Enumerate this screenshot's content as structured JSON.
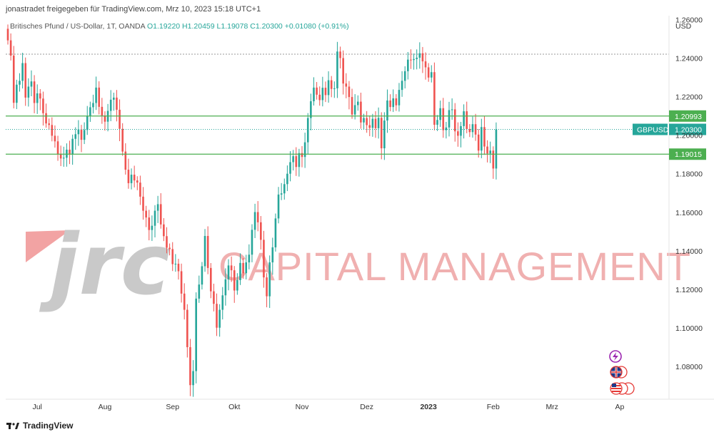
{
  "header": {
    "attribution": "jonastradet freigegeben für TradingView.com, Mrz 10, 2023 15:18 UTC+1"
  },
  "symbol": {
    "name": "Britisches Pfund / US-Dollar, 1T, OANDA",
    "open": "O1.19220",
    "high": "H1.20459",
    "low": "L1.19078",
    "close": "C1.20300",
    "change": "+0.01080 (+0.91%)"
  },
  "footer": {
    "brand": "TradingView"
  },
  "watermark": {
    "logo": "jrc",
    "text": "CAPITAL MANAGEMENT"
  },
  "colors": {
    "up": "#26a69a",
    "down": "#ef5350",
    "level": "#4caf50",
    "price_tag": "#26a69a"
  },
  "icons": [
    "lightning-icon",
    "uk-flag-icon",
    "us-flag-icon"
  ],
  "chart_data": {
    "type": "candlestick",
    "currency": "USD",
    "ylim": [
      1.063,
      1.262
    ],
    "y_ticks": [
      "1.26000",
      "1.24000",
      "1.22000",
      "1.20000",
      "1.18000",
      "1.16000",
      "1.14000",
      "1.12000",
      "1.10000",
      "1.08000"
    ],
    "x_ticks": [
      {
        "label": "Jul",
        "i": 10
      },
      {
        "label": "Aug",
        "i": 33
      },
      {
        "label": "Sep",
        "i": 56
      },
      {
        "label": "Okt",
        "i": 77
      },
      {
        "label": "Nov",
        "i": 100
      },
      {
        "label": "Dez",
        "i": 122
      },
      {
        "label": "2023",
        "i": 143,
        "bold": true
      },
      {
        "label": "Feb",
        "i": 165
      },
      {
        "label": "Mrz",
        "i": 185
      },
      {
        "label": "Ap",
        "i": 208
      }
    ],
    "levels": [
      {
        "value": 1.20993,
        "label": "1.20993"
      },
      {
        "value": 1.19015,
        "label": "1.19015"
      }
    ],
    "last_price": {
      "symbol": "GBPUSD",
      "value": 1.203,
      "label": "1.20300"
    },
    "closes": [
      1.2492,
      1.2413,
      1.2168,
      1.2262,
      1.2282,
      1.2374,
      1.2195,
      1.2252,
      1.2279,
      1.2167,
      1.2217,
      1.219,
      1.2114,
      1.2061,
      1.2053,
      1.1997,
      1.1968,
      1.1903,
      1.1879,
      1.1883,
      1.1925,
      1.19,
      1.1981,
      1.2005,
      1.2028,
      1.1976,
      1.2027,
      1.2098,
      1.2145,
      1.2167,
      1.2247,
      1.2147,
      1.2102,
      1.207,
      1.2126,
      1.2184,
      1.2195,
      1.2132,
      1.2033,
      1.1915,
      1.1821,
      1.1751,
      1.1795,
      1.1765,
      1.1754,
      1.1681,
      1.1608,
      1.1573,
      1.1508,
      1.153,
      1.1608,
      1.1642,
      1.1537,
      1.1476,
      1.1416,
      1.1409,
      1.1331,
      1.1333,
      1.1294,
      1.1178,
      1.1094,
      1.09,
      1.0703,
      1.0776,
      1.1152,
      1.1225,
      1.132,
      1.1477,
      1.1311,
      1.119,
      1.1125,
      1.1001,
      1.1094,
      1.1169,
      1.1252,
      1.1324,
      1.1299,
      1.1194,
      1.1248,
      1.1337,
      1.1284,
      1.134,
      1.138,
      1.1509,
      1.1601,
      1.1548,
      1.1457,
      1.1262,
      1.1164,
      1.134,
      1.1418,
      1.1568,
      1.1692,
      1.1698,
      1.1746,
      1.18,
      1.186,
      1.1891,
      1.1835,
      1.1907,
      1.1887,
      1.1963,
      1.2089,
      1.2176,
      1.2247,
      1.221,
      1.2182,
      1.2246,
      1.2208,
      1.2285,
      1.224,
      1.2243,
      1.2434,
      1.24,
      1.2268,
      1.2252,
      1.2198,
      1.2107,
      1.2156,
      1.2174,
      1.2066,
      1.2089,
      1.2052,
      1.2038,
      1.2085,
      1.2036,
      1.209,
      1.1932,
      1.2076,
      1.218,
      1.2146,
      1.2191,
      1.2155,
      1.2235,
      1.2282,
      1.2332,
      1.2392,
      1.239,
      1.2395,
      1.2402,
      1.2425,
      1.2383,
      1.2352,
      1.2299,
      1.2327,
      1.2054,
      1.2079,
      1.214,
      1.2026,
      1.204,
      1.213,
      1.2134,
      1.202,
      1.1997,
      1.2047,
      1.2124,
      1.2032,
      1.2016,
      1.2057,
      1.2003,
      1.192,
      1.2042,
      1.1941,
      1.1905,
      1.192,
      1.1827,
      1.203
    ]
  }
}
